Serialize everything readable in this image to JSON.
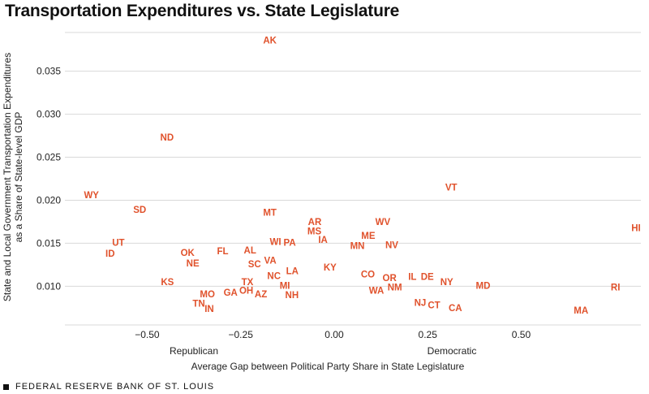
{
  "title": "Transportation Expenditures vs. State Legislature",
  "footer": "FEDERAL RESERVE BANK OF ST. LOUIS",
  "colors": {
    "points": "#e0522c",
    "grid": "#d9d9d9",
    "text": "#222222"
  },
  "chart_data": {
    "type": "scatter",
    "title": "Transportation Expenditures vs. State Legislature",
    "xlabel": "Average Gap between Political Party Share in State Legislature",
    "ylabel_lines": [
      "State and Local Government Transportation Expenditures",
      "as a Share of State-level GDP"
    ],
    "x_annotations": {
      "left": "Republican",
      "right": "Democratic"
    },
    "xlim": [
      -0.72,
      0.82
    ],
    "ylim": [
      0.0055,
      0.0395
    ],
    "x_ticks": [
      -0.5,
      -0.25,
      0.0,
      0.25,
      0.5
    ],
    "x_tick_labels": [
      "−0.50",
      "−0.25",
      "0.00",
      "0.25",
      "0.50"
    ],
    "y_ticks": [
      0.01,
      0.015,
      0.02,
      0.025,
      0.03,
      0.035
    ],
    "y_tick_labels": [
      "0.010",
      "0.015",
      "0.020",
      "0.025",
      "0.030",
      "0.035"
    ],
    "grid": "horizontal",
    "points": [
      {
        "label": "AK",
        "x": -0.172,
        "y": 0.0386
      },
      {
        "label": "ND",
        "x": -0.447,
        "y": 0.0273
      },
      {
        "label": "WY",
        "x": -0.649,
        "y": 0.0206
      },
      {
        "label": "SD",
        "x": -0.52,
        "y": 0.0189
      },
      {
        "label": "MT",
        "x": -0.172,
        "y": 0.0186
      },
      {
        "label": "VT",
        "x": 0.313,
        "y": 0.0215
      },
      {
        "label": "HI",
        "x": 0.807,
        "y": 0.0168
      },
      {
        "label": "UT",
        "x": -0.577,
        "y": 0.0151
      },
      {
        "label": "ID",
        "x": -0.599,
        "y": 0.0138
      },
      {
        "label": "OK",
        "x": -0.392,
        "y": 0.0139
      },
      {
        "label": "NE",
        "x": -0.378,
        "y": 0.0127
      },
      {
        "label": "FL",
        "x": -0.298,
        "y": 0.0141
      },
      {
        "label": "AL",
        "x": -0.225,
        "y": 0.0142
      },
      {
        "label": "WI",
        "x": -0.157,
        "y": 0.0152
      },
      {
        "label": "PA",
        "x": -0.119,
        "y": 0.0151
      },
      {
        "label": "AR",
        "x": -0.052,
        "y": 0.0175
      },
      {
        "label": "MS",
        "x": -0.053,
        "y": 0.0164
      },
      {
        "label": "IA",
        "x": -0.03,
        "y": 0.0154
      },
      {
        "label": "WV",
        "x": 0.13,
        "y": 0.0175
      },
      {
        "label": "ME",
        "x": 0.091,
        "y": 0.0159
      },
      {
        "label": "MN",
        "x": 0.062,
        "y": 0.0147
      },
      {
        "label": "NV",
        "x": 0.154,
        "y": 0.0148
      },
      {
        "label": "VA",
        "x": -0.171,
        "y": 0.013
      },
      {
        "label": "SC",
        "x": -0.213,
        "y": 0.0126
      },
      {
        "label": "LA",
        "x": -0.112,
        "y": 0.0118
      },
      {
        "label": "KY",
        "x": -0.011,
        "y": 0.0122
      },
      {
        "label": "NC",
        "x": -0.161,
        "y": 0.0112
      },
      {
        "label": "CO",
        "x": 0.09,
        "y": 0.0114
      },
      {
        "label": "OR",
        "x": 0.148,
        "y": 0.011
      },
      {
        "label": "IL",
        "x": 0.209,
        "y": 0.0111
      },
      {
        "label": "DE",
        "x": 0.249,
        "y": 0.0111
      },
      {
        "label": "NY",
        "x": 0.301,
        "y": 0.0105
      },
      {
        "label": "MD",
        "x": 0.398,
        "y": 0.0101
      },
      {
        "label": "RI",
        "x": 0.752,
        "y": 0.0099
      },
      {
        "label": "KS",
        "x": -0.446,
        "y": 0.0105
      },
      {
        "label": "TX",
        "x": -0.232,
        "y": 0.0105
      },
      {
        "label": "OH",
        "x": -0.235,
        "y": 0.0095
      },
      {
        "label": "AZ",
        "x": -0.196,
        "y": 0.0091
      },
      {
        "label": "MI",
        "x": -0.132,
        "y": 0.0101
      },
      {
        "label": "NH",
        "x": -0.113,
        "y": 0.009
      },
      {
        "label": "WA",
        "x": 0.113,
        "y": 0.0095
      },
      {
        "label": "NM",
        "x": 0.162,
        "y": 0.0099
      },
      {
        "label": "GA",
        "x": -0.277,
        "y": 0.0093
      },
      {
        "label": "MO",
        "x": -0.339,
        "y": 0.0091
      },
      {
        "label": "TN",
        "x": -0.362,
        "y": 0.008
      },
      {
        "label": "IN",
        "x": -0.334,
        "y": 0.0074
      },
      {
        "label": "NJ",
        "x": 0.23,
        "y": 0.0081
      },
      {
        "label": "CT",
        "x": 0.267,
        "y": 0.0078
      },
      {
        "label": "CA",
        "x": 0.324,
        "y": 0.0075
      },
      {
        "label": "MA",
        "x": 0.66,
        "y": 0.0072
      }
    ]
  }
}
